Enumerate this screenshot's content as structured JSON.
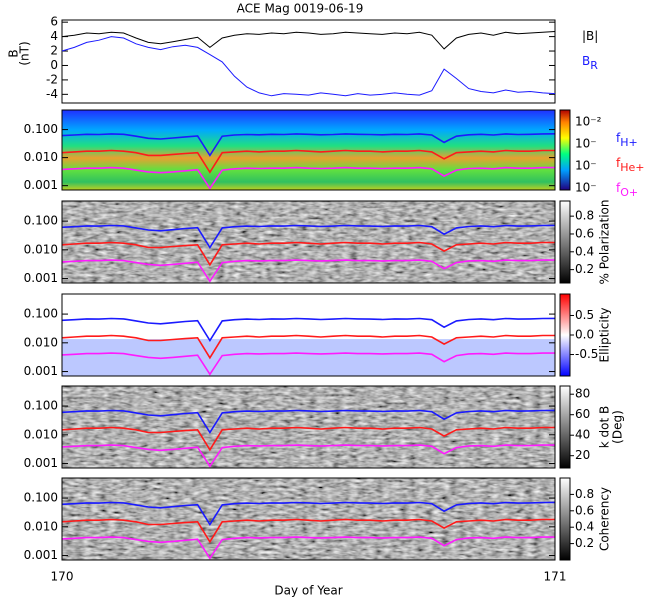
{
  "chart_data": [
    {
      "type": "line",
      "title": "ACE Mag 0019-06-19",
      "y_label": [
        "B",
        "(nT)"
      ],
      "xlim": [
        170,
        171
      ],
      "x": [
        170.0,
        170.025,
        170.05,
        170.075,
        170.1,
        170.125,
        170.15,
        170.175,
        170.2,
        170.225,
        170.25,
        170.275,
        170.3,
        170.325,
        170.35,
        170.375,
        170.4,
        170.425,
        170.45,
        170.475,
        170.5,
        170.525,
        170.55,
        170.575,
        170.6,
        170.625,
        170.65,
        170.675,
        170.7,
        170.725,
        170.75,
        170.775,
        170.8,
        170.825,
        170.85,
        170.875,
        170.9,
        170.925,
        170.95,
        170.975,
        171.0
      ],
      "ylim": [
        -5.2,
        6.3
      ],
      "yticks": [
        6,
        4,
        2,
        0,
        -2,
        -4
      ],
      "series": [
        {
          "name": "|B|",
          "color": "#000000",
          "values": [
            4.0,
            4.2,
            4.5,
            4.4,
            4.6,
            4.5,
            3.8,
            3.2,
            3.0,
            3.3,
            3.6,
            3.9,
            2.5,
            3.8,
            4.2,
            4.4,
            4.3,
            4.5,
            4.4,
            4.6,
            4.5,
            4.3,
            4.4,
            4.6,
            4.5,
            4.4,
            4.3,
            4.5,
            4.4,
            4.6,
            4.2,
            2.3,
            3.8,
            4.3,
            4.5,
            4.2,
            4.6,
            4.4,
            4.5,
            4.6,
            4.7
          ]
        },
        {
          "name": "B",
          "subscript": "R",
          "color": "#1a1aff",
          "values": [
            2.0,
            2.5,
            3.2,
            3.5,
            4.0,
            3.8,
            3.0,
            2.5,
            2.2,
            2.6,
            2.8,
            2.5,
            1.5,
            0.5,
            -1.5,
            -3.0,
            -3.8,
            -4.2,
            -3.9,
            -4.0,
            -4.1,
            -3.8,
            -4.0,
            -4.2,
            -3.9,
            -4.1,
            -4.0,
            -3.8,
            -4.0,
            -4.1,
            -3.5,
            -0.5,
            -1.8,
            -3.2,
            -3.6,
            -3.8,
            -3.4,
            -3.7,
            -3.6,
            -3.8,
            -3.9
          ]
        }
      ]
    },
    {
      "type": "spectrogram",
      "colormap": "jet",
      "log_y": true,
      "ylim": [
        0.0007,
        0.5
      ],
      "yticks": [
        {
          "value": 0.1,
          "label": "0.100"
        },
        {
          "value": 0.01,
          "label": "0.010"
        },
        {
          "value": 0.001,
          "label": "0.001"
        }
      ],
      "colorbar_tick_labels": [
        "10⁻²",
        "10⁻",
        "10⁻",
        "10⁻"
      ],
      "series": [
        {
          "name": "f",
          "subscript": "H+",
          "color": "#1a1aff",
          "values": [
            0.061,
            0.064,
            0.068,
            0.067,
            0.07,
            0.068,
            0.058,
            0.049,
            0.046,
            0.05,
            0.055,
            0.059,
            0.012,
            0.058,
            0.064,
            0.067,
            0.065,
            0.068,
            0.067,
            0.07,
            0.068,
            0.065,
            0.067,
            0.07,
            0.068,
            0.067,
            0.065,
            0.068,
            0.067,
            0.07,
            0.064,
            0.035,
            0.058,
            0.065,
            0.068,
            0.064,
            0.07,
            0.067,
            0.068,
            0.07,
            0.071
          ]
        },
        {
          "name": "f",
          "subscript": "He+",
          "color": "#ff1a1a",
          "values": [
            0.015,
            0.016,
            0.017,
            0.017,
            0.018,
            0.017,
            0.015,
            0.012,
            0.012,
            0.013,
            0.014,
            0.015,
            0.003,
            0.015,
            0.016,
            0.017,
            0.016,
            0.017,
            0.017,
            0.018,
            0.017,
            0.016,
            0.017,
            0.018,
            0.017,
            0.017,
            0.016,
            0.017,
            0.017,
            0.018,
            0.016,
            0.009,
            0.015,
            0.016,
            0.017,
            0.016,
            0.018,
            0.017,
            0.017,
            0.018,
            0.018
          ]
        },
        {
          "name": "f",
          "subscript": "O+",
          "color": "#ff1aff",
          "values": [
            0.0038,
            0.004,
            0.0042,
            0.0042,
            0.0044,
            0.0042,
            0.0036,
            0.0031,
            0.0029,
            0.0031,
            0.0034,
            0.0037,
            0.0008,
            0.0036,
            0.004,
            0.0042,
            0.0041,
            0.0042,
            0.0042,
            0.0044,
            0.0042,
            0.0041,
            0.0042,
            0.0044,
            0.0042,
            0.0042,
            0.0041,
            0.0042,
            0.0042,
            0.0044,
            0.004,
            0.0022,
            0.0036,
            0.0041,
            0.0042,
            0.004,
            0.0044,
            0.0042,
            0.0042,
            0.0044,
            0.0044
          ]
        }
      ]
    },
    {
      "type": "spectrogram",
      "colormap": "gray",
      "log_y": true,
      "ylim": [
        0.0007,
        0.5
      ],
      "yticks": [
        {
          "value": 0.1,
          "label": "0.100"
        },
        {
          "value": 0.01,
          "label": "0.010"
        },
        {
          "value": 0.001,
          "label": "0.001"
        }
      ],
      "colorbar_label": [
        "% Polarization"
      ],
      "colorbar_lim": [
        0.05,
        0.97
      ],
      "colorbar_ticks": [
        0.8,
        0.6,
        0.4,
        0.2
      ]
    },
    {
      "type": "spectrogram",
      "colormap": "redblue",
      "log_y": true,
      "ylim": [
        0.0007,
        0.5
      ],
      "yticks": [
        {
          "value": 0.1,
          "label": "0.100"
        },
        {
          "value": 0.01,
          "label": "0.010"
        },
        {
          "value": 0.001,
          "label": "0.001"
        }
      ],
      "colorbar_label": [
        "Ellipticity"
      ],
      "colorbar_lim": [
        -1.05,
        1.05
      ],
      "colorbar_ticks": [
        0.5,
        {
          "value": 0,
          "label": "0.0"
        },
        -0.5
      ]
    },
    {
      "type": "spectrogram",
      "colormap": "gray",
      "log_y": true,
      "ylim": [
        0.0007,
        0.5
      ],
      "yticks": [
        {
          "value": 0.1,
          "label": "0.100"
        },
        {
          "value": 0.01,
          "label": "0.010"
        },
        {
          "value": 0.001,
          "label": "0.001"
        }
      ],
      "colorbar_label": [
        "k dot B",
        "(Deg)"
      ],
      "colorbar_lim": [
        8,
        88
      ],
      "colorbar_ticks": [
        80,
        60,
        40,
        20
      ]
    },
    {
      "type": "spectrogram",
      "colormap": "gray",
      "log_y": true,
      "ylim": [
        0.0007,
        0.5
      ],
      "yticks": [
        {
          "value": 0.1,
          "label": "0.100"
        },
        {
          "value": 0.01,
          "label": "0.010"
        },
        {
          "value": 0.001,
          "label": "0.001"
        }
      ],
      "colorbar_label": [
        "Coherency"
      ],
      "colorbar_lim": [
        0,
        1
      ],
      "colorbar_ticks": [
        0.8,
        0.6,
        0.4,
        0.2
      ],
      "xticks": [
        170,
        171
      ],
      "x_label": "Day of Year"
    }
  ]
}
